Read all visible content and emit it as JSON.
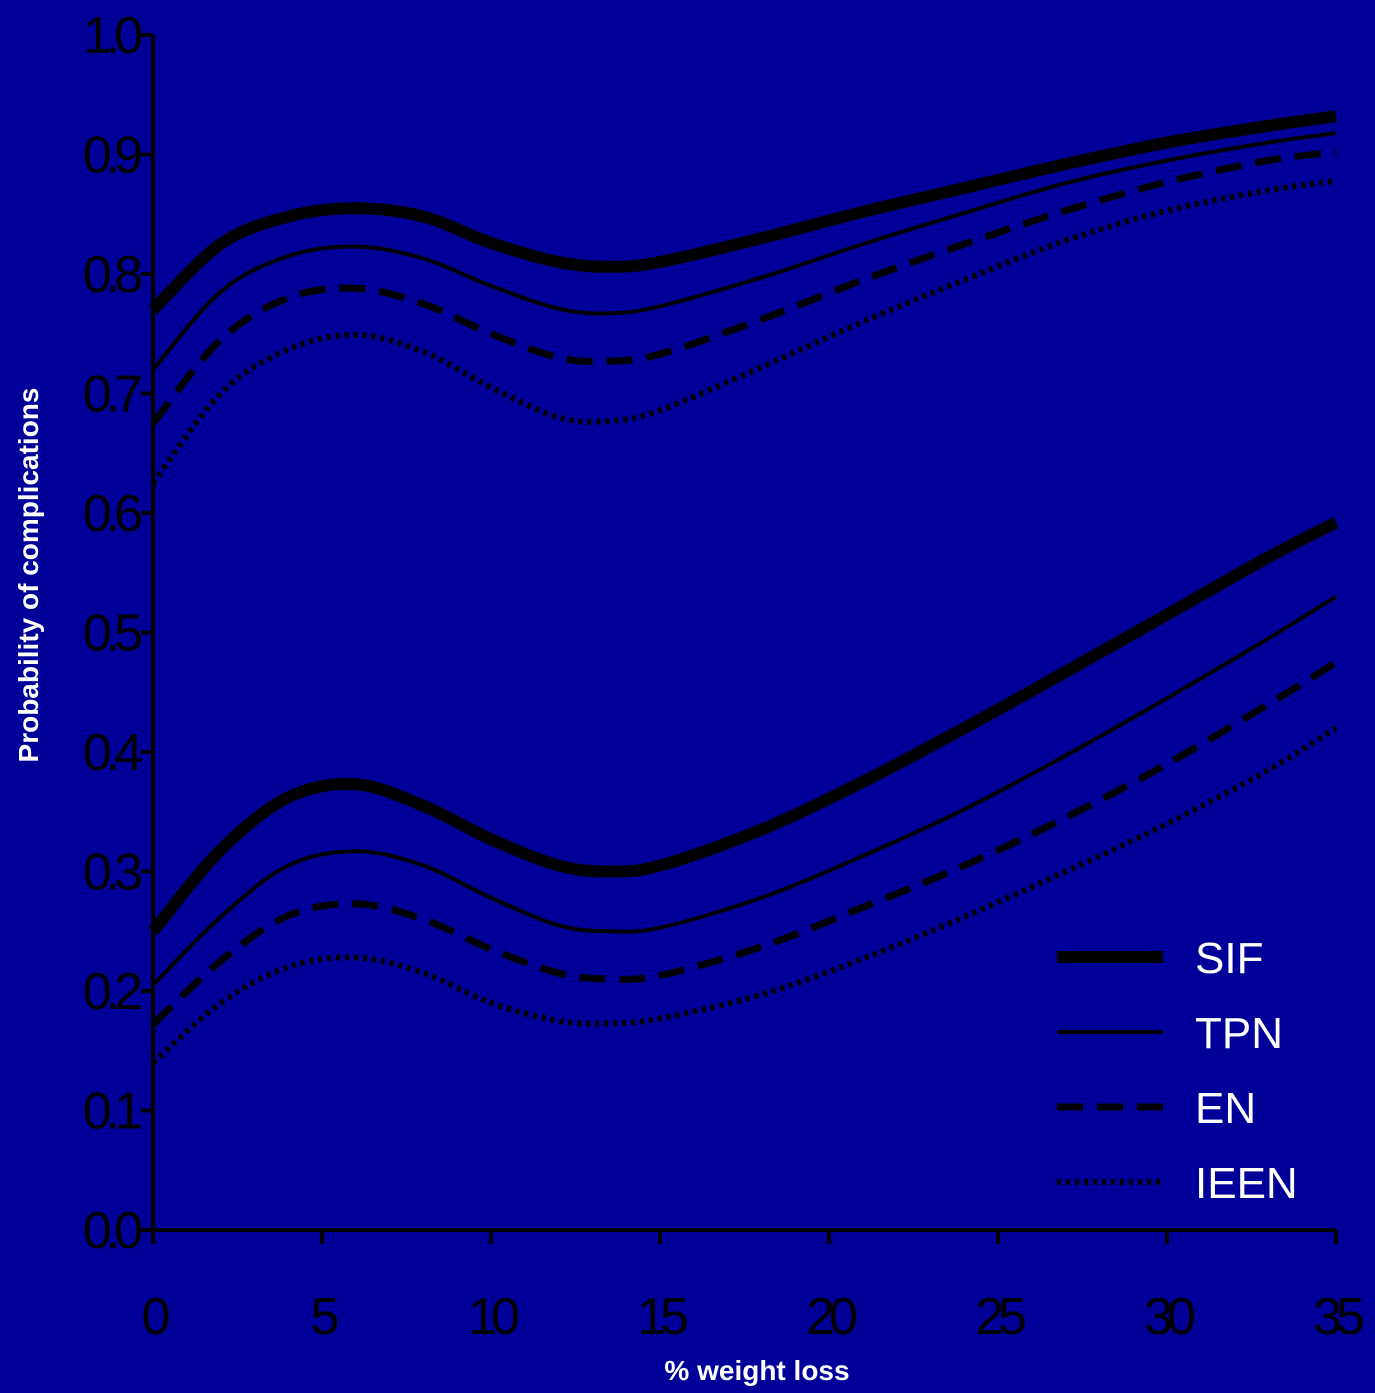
{
  "chart_data": {
    "type": "line",
    "title": "",
    "xlabel": "% weight loss",
    "ylabel": "Probability of complications",
    "xlim": [
      0,
      35
    ],
    "ylim": [
      0.0,
      1.0
    ],
    "xticks": [
      "0",
      "5",
      "10",
      "15",
      "20",
      "25",
      "30",
      "35"
    ],
    "yticks": [
      "0.0",
      "0.1",
      "0.2",
      "0.3",
      "0.4",
      "0.5",
      "0.6",
      "0.7",
      "0.8",
      "0.9",
      "1.0"
    ],
    "grid": false,
    "legend_position": "bottom-right",
    "x": [
      0,
      2,
      4,
      6,
      8,
      10,
      12,
      13.5,
      15,
      18,
      21,
      24,
      27,
      30,
      33,
      35
    ],
    "series": [
      {
        "name": "SIF",
        "style": "thick-solid",
        "group": "upper",
        "values": [
          0.77,
          0.825,
          0.848,
          0.855,
          0.848,
          0.826,
          0.81,
          0.806,
          0.81,
          0.83,
          0.852,
          0.872,
          0.892,
          0.91,
          0.924,
          0.932
        ]
      },
      {
        "name": "TPN",
        "style": "thin-solid",
        "group": "upper",
        "values": [
          0.72,
          0.785,
          0.815,
          0.823,
          0.813,
          0.79,
          0.771,
          0.767,
          0.773,
          0.797,
          0.825,
          0.851,
          0.876,
          0.895,
          0.91,
          0.918
        ]
      },
      {
        "name": "EN",
        "style": "dashed",
        "group": "upper",
        "values": [
          0.675,
          0.745,
          0.78,
          0.788,
          0.775,
          0.75,
          0.73,
          0.727,
          0.733,
          0.762,
          0.795,
          0.825,
          0.853,
          0.877,
          0.895,
          0.902
        ]
      },
      {
        "name": "IEEN",
        "style": "dotted",
        "group": "upper",
        "values": [
          0.625,
          0.7,
          0.737,
          0.749,
          0.735,
          0.705,
          0.68,
          0.677,
          0.686,
          0.722,
          0.76,
          0.795,
          0.828,
          0.853,
          0.87,
          0.878
        ]
      },
      {
        "name": "SIF",
        "style": "thick-solid",
        "group": "lower",
        "values": [
          0.25,
          0.318,
          0.362,
          0.373,
          0.355,
          0.327,
          0.305,
          0.3,
          0.305,
          0.335,
          0.375,
          0.42,
          0.467,
          0.515,
          0.563,
          0.592
        ]
      },
      {
        "name": "TPN",
        "style": "thin-solid",
        "group": "lower",
        "values": [
          0.205,
          0.262,
          0.305,
          0.317,
          0.305,
          0.278,
          0.255,
          0.25,
          0.253,
          0.278,
          0.313,
          0.352,
          0.397,
          0.445,
          0.495,
          0.53
        ]
      },
      {
        "name": "EN",
        "style": "dashed",
        "group": "lower",
        "values": [
          0.172,
          0.225,
          0.263,
          0.273,
          0.26,
          0.235,
          0.215,
          0.21,
          0.213,
          0.237,
          0.27,
          0.305,
          0.345,
          0.39,
          0.44,
          0.475
        ]
      },
      {
        "name": "IEEN",
        "style": "dotted",
        "group": "lower",
        "values": [
          0.14,
          0.19,
          0.22,
          0.228,
          0.215,
          0.19,
          0.175,
          0.173,
          0.177,
          0.197,
          0.227,
          0.262,
          0.3,
          0.34,
          0.385,
          0.42
        ]
      }
    ],
    "legend": [
      {
        "name": "SIF",
        "style": "thick-solid"
      },
      {
        "name": "TPN",
        "style": "thin-solid"
      },
      {
        "name": "EN",
        "style": "dashed"
      },
      {
        "name": "IEEN",
        "style": "dotted"
      }
    ],
    "colors": {
      "background": "#000099",
      "line": "#000000",
      "axis": "#000000",
      "tick_label": "#000000",
      "axis_title": "#ffffff",
      "legend_text": "#ffffff"
    }
  }
}
